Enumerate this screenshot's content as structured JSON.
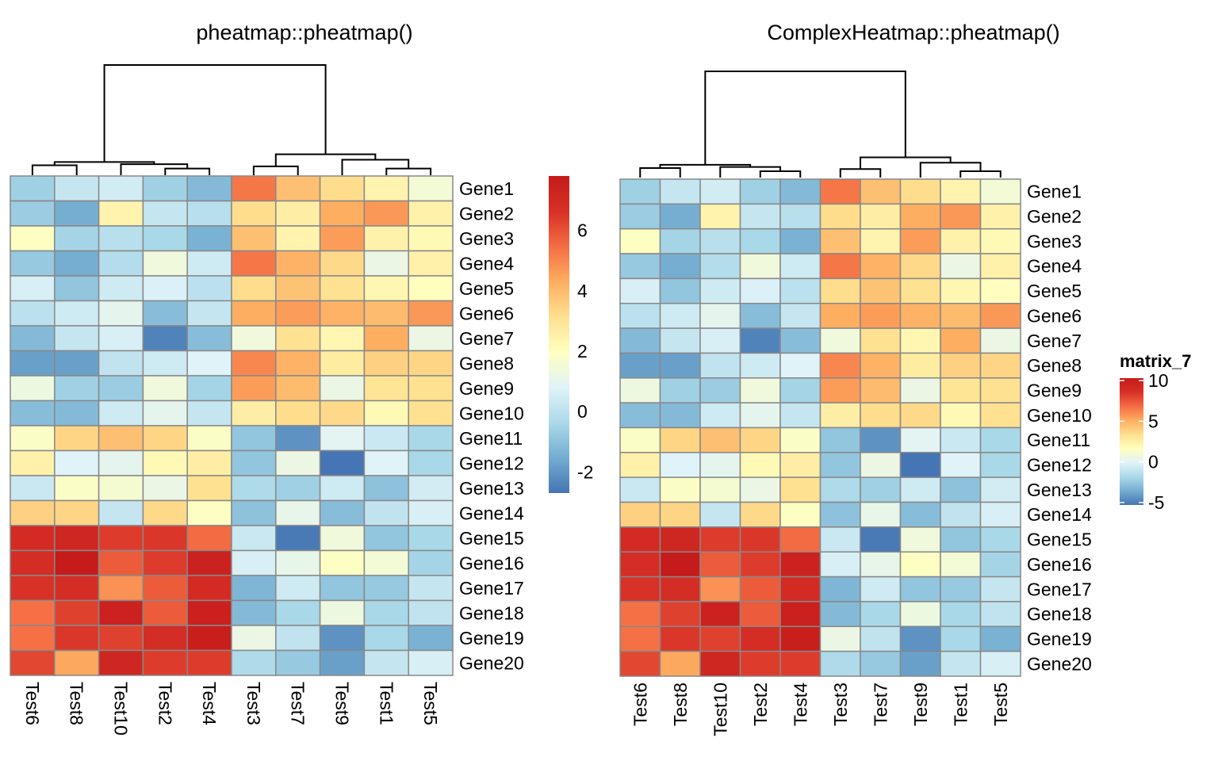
{
  "chart_data": [
    {
      "type": "heatmap",
      "title": "pheatmap::pheatmap()",
      "row_labels": [
        "Gene1",
        "Gene2",
        "Gene3",
        "Gene4",
        "Gene5",
        "Gene6",
        "Gene7",
        "Gene8",
        "Gene9",
        "Gene10",
        "Gene11",
        "Gene12",
        "Gene13",
        "Gene14",
        "Gene15",
        "Gene16",
        "Gene17",
        "Gene18",
        "Gene19",
        "Gene20"
      ],
      "col_labels": [
        "Test6",
        "Test8",
        "Test10",
        "Test2",
        "Test4",
        "Test3",
        "Test7",
        "Test9",
        "Test1",
        "Test5"
      ],
      "values": [
        [
          -0.6,
          0.2,
          0.5,
          -0.6,
          -1.2,
          5.3,
          3.9,
          3.2,
          2.4,
          1.5
        ],
        [
          -0.7,
          -1.5,
          2.4,
          0.2,
          -0.1,
          3.2,
          2.6,
          4.3,
          4.7,
          2.5
        ],
        [
          1.9,
          -0.5,
          -0.1,
          -0.4,
          -1.4,
          3.9,
          2.4,
          4.6,
          2.5,
          2.2
        ],
        [
          -0.8,
          -1.5,
          -0.2,
          1.4,
          0.4,
          5.3,
          4.2,
          3.3,
          1.2,
          2.5
        ],
        [
          0.6,
          -0.9,
          0.4,
          0.7,
          0.0,
          3.2,
          3.8,
          3.1,
          2.3,
          2.0
        ],
        [
          0.0,
          0.4,
          1.0,
          -1.1,
          0.2,
          4.3,
          4.6,
          4.2,
          4.0,
          4.7
        ],
        [
          -1.2,
          0.2,
          0.6,
          -2.4,
          -1.1,
          1.4,
          3.1,
          2.3,
          4.3,
          1.2
        ],
        [
          -1.8,
          -1.8,
          0.1,
          0.4,
          0.8,
          5.0,
          4.2,
          2.7,
          3.5,
          3.4
        ],
        [
          1.3,
          -0.6,
          -0.7,
          1.4,
          -0.5,
          4.6,
          4.0,
          1.2,
          3.0,
          3.1
        ],
        [
          -1.1,
          -1.2,
          0.4,
          1.0,
          0.2,
          2.6,
          3.2,
          3.3,
          2.2,
          3.1
        ],
        [
          1.8,
          3.4,
          3.9,
          3.4,
          1.8,
          -0.9,
          -2.1,
          0.9,
          0.3,
          -0.4
        ],
        [
          2.5,
          0.8,
          1.0,
          2.2,
          2.6,
          -0.9,
          1.2,
          -2.7,
          0.8,
          -0.4
        ],
        [
          0.3,
          1.8,
          1.6,
          1.2,
          3.1,
          -0.3,
          -0.6,
          0.4,
          -1.0,
          0.5
        ],
        [
          3.5,
          3.4,
          0.2,
          3.3,
          1.9,
          -1.0,
          1.1,
          -1.1,
          0.1,
          0.6
        ],
        [
          6.9,
          7.2,
          6.4,
          6.5,
          5.5,
          0.3,
          -2.6,
          1.4,
          -0.9,
          -0.4
        ],
        [
          6.8,
          7.8,
          5.8,
          6.4,
          7.4,
          0.6,
          1.1,
          1.9,
          1.5,
          -0.5
        ],
        [
          6.6,
          6.8,
          4.8,
          5.8,
          6.9,
          -1.3,
          0.4,
          -0.9,
          -0.8,
          0.2
        ],
        [
          5.4,
          6.3,
          7.4,
          5.8,
          7.5,
          -1.2,
          -0.4,
          1.3,
          -0.4,
          0.1
        ],
        [
          5.4,
          6.5,
          6.3,
          6.8,
          7.6,
          1.2,
          0.1,
          -2.1,
          -0.4,
          -1.4
        ],
        [
          6.2,
          4.4,
          7.2,
          6.4,
          6.4,
          -0.3,
          -0.8,
          -1.8,
          0.2,
          0.6
        ]
      ],
      "legend": {
        "title": "",
        "ticks": [
          "6",
          "4",
          "2",
          "0",
          "-2"
        ],
        "tick_values": [
          6,
          4,
          2,
          0,
          -2
        ],
        "range": [
          -2.7,
          7.8
        ]
      },
      "col_dendrogram": true,
      "row_dendrogram": false
    },
    {
      "type": "heatmap",
      "title": "ComplexHeatmap::pheatmap()",
      "row_labels": [
        "Gene1",
        "Gene2",
        "Gene3",
        "Gene4",
        "Gene5",
        "Gene6",
        "Gene7",
        "Gene8",
        "Gene9",
        "Gene10",
        "Gene11",
        "Gene12",
        "Gene13",
        "Gene14",
        "Gene15",
        "Gene16",
        "Gene17",
        "Gene18",
        "Gene19",
        "Gene20"
      ],
      "col_labels": [
        "Test6",
        "Test8",
        "Test10",
        "Test2",
        "Test4",
        "Test3",
        "Test7",
        "Test9",
        "Test1",
        "Test5"
      ],
      "values_same_as": "pheatmap::pheatmap()",
      "legend": {
        "title": "matrix_7",
        "ticks": [
          "10",
          "5",
          "0",
          "-5"
        ],
        "tick_values": [
          10,
          5,
          0,
          -5
        ],
        "range": [
          -5.3,
          10.3
        ]
      },
      "col_dendrogram": true,
      "row_dendrogram": false
    }
  ],
  "palette": [
    "#4575b4",
    "#74add1",
    "#abd9e9",
    "#e0f3f8",
    "#ffffbf",
    "#fee090",
    "#fdae61",
    "#f46d43",
    "#d73027",
    "#c51b1b"
  ],
  "cell_border_color": "#888888"
}
